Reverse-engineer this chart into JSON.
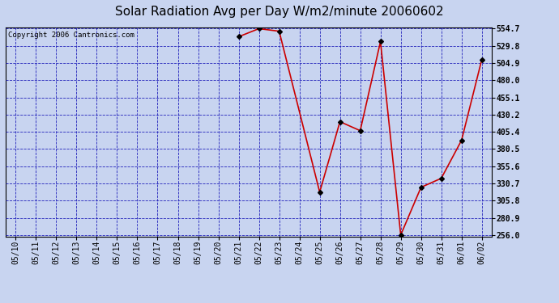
{
  "title": "Solar Radiation Avg per Day W/m2/minute 20060602",
  "copyright": "Copyright 2006 Cantronics.com",
  "x_labels": [
    "05/10",
    "05/11",
    "05/12",
    "05/13",
    "05/14",
    "05/15",
    "05/16",
    "05/17",
    "05/18",
    "05/19",
    "05/20",
    "05/21",
    "05/22",
    "05/23",
    "05/24",
    "05/25",
    "05/26",
    "05/27",
    "05/28",
    "05/29",
    "05/30",
    "05/31",
    "06/01",
    "06/02"
  ],
  "data_points": {
    "05/21": 543.0,
    "05/22": 554.7,
    "05/23": 551.0,
    "05/25": 318.0,
    "05/26": 420.0,
    "05/27": 407.0,
    "05/28": 536.0,
    "05/29": 256.0,
    "05/30": 325.0,
    "05/31": 338.0,
    "06/01": 393.0,
    "06/02": 510.0
  },
  "y_ticks": [
    256.0,
    280.9,
    305.8,
    330.7,
    355.6,
    380.5,
    405.4,
    430.2,
    455.1,
    480.0,
    504.9,
    529.8,
    554.7
  ],
  "y_min": 256.0,
  "y_max": 554.7,
  "line_color": "#cc0000",
  "marker_color": "#000000",
  "bg_color": "#c8d4f0",
  "plot_bg_color": "#c8d4f0",
  "grid_color": "#2222bb",
  "title_fontsize": 11,
  "copyright_fontsize": 6.5,
  "tick_fontsize": 7,
  "ytick_fontsize": 7
}
